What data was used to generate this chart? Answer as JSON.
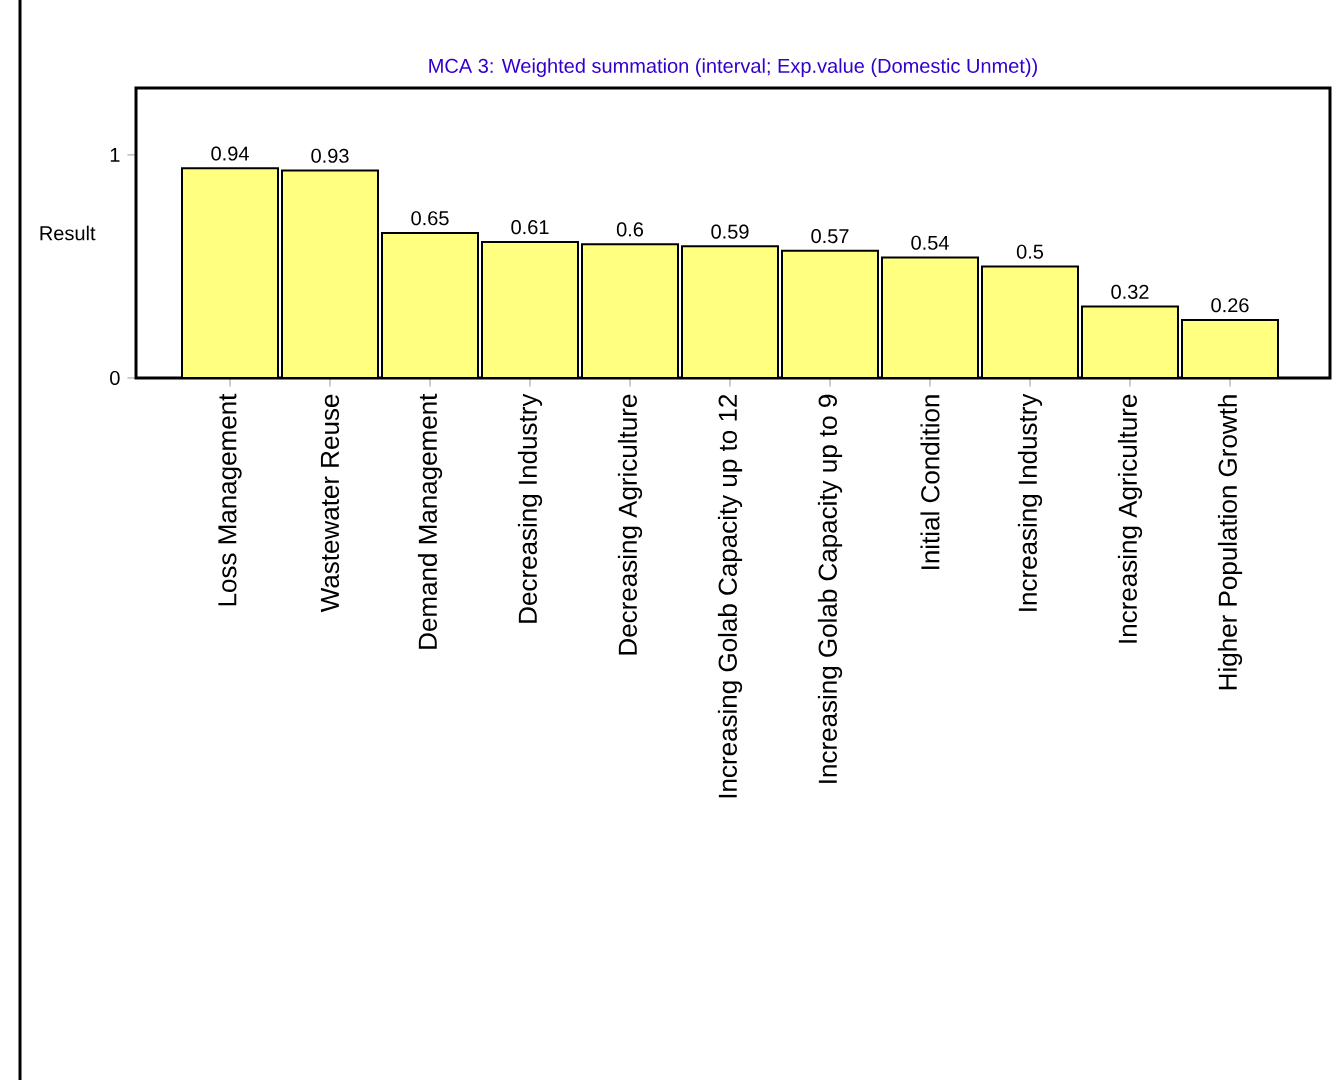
{
  "chart_data": {
    "type": "bar",
    "title": "MCA 3: Weighted summation (interval; Exp.value (Domestic Unmet))",
    "ylabel": "Result",
    "categories": [
      "Loss Management",
      "Wastewater Reuse",
      "Demand Management",
      "Decreasing Industry",
      "Decreasing Agriculture",
      "Increasing Golab Capacity up to 12",
      "Increasing Golab Capacity up to 9",
      "Initial Condition",
      "Increasing Industry",
      "Increasing Agriculture",
      "Higher Population Growth"
    ],
    "values": [
      0.94,
      0.93,
      0.65,
      0.61,
      0.6,
      0.59,
      0.57,
      0.54,
      0.5,
      0.32,
      0.26
    ],
    "color": "#ffff80",
    "ylim": [
      0,
      1.3
    ],
    "yticks": [
      0,
      1
    ],
    "data_labels": true,
    "grid": false
  }
}
